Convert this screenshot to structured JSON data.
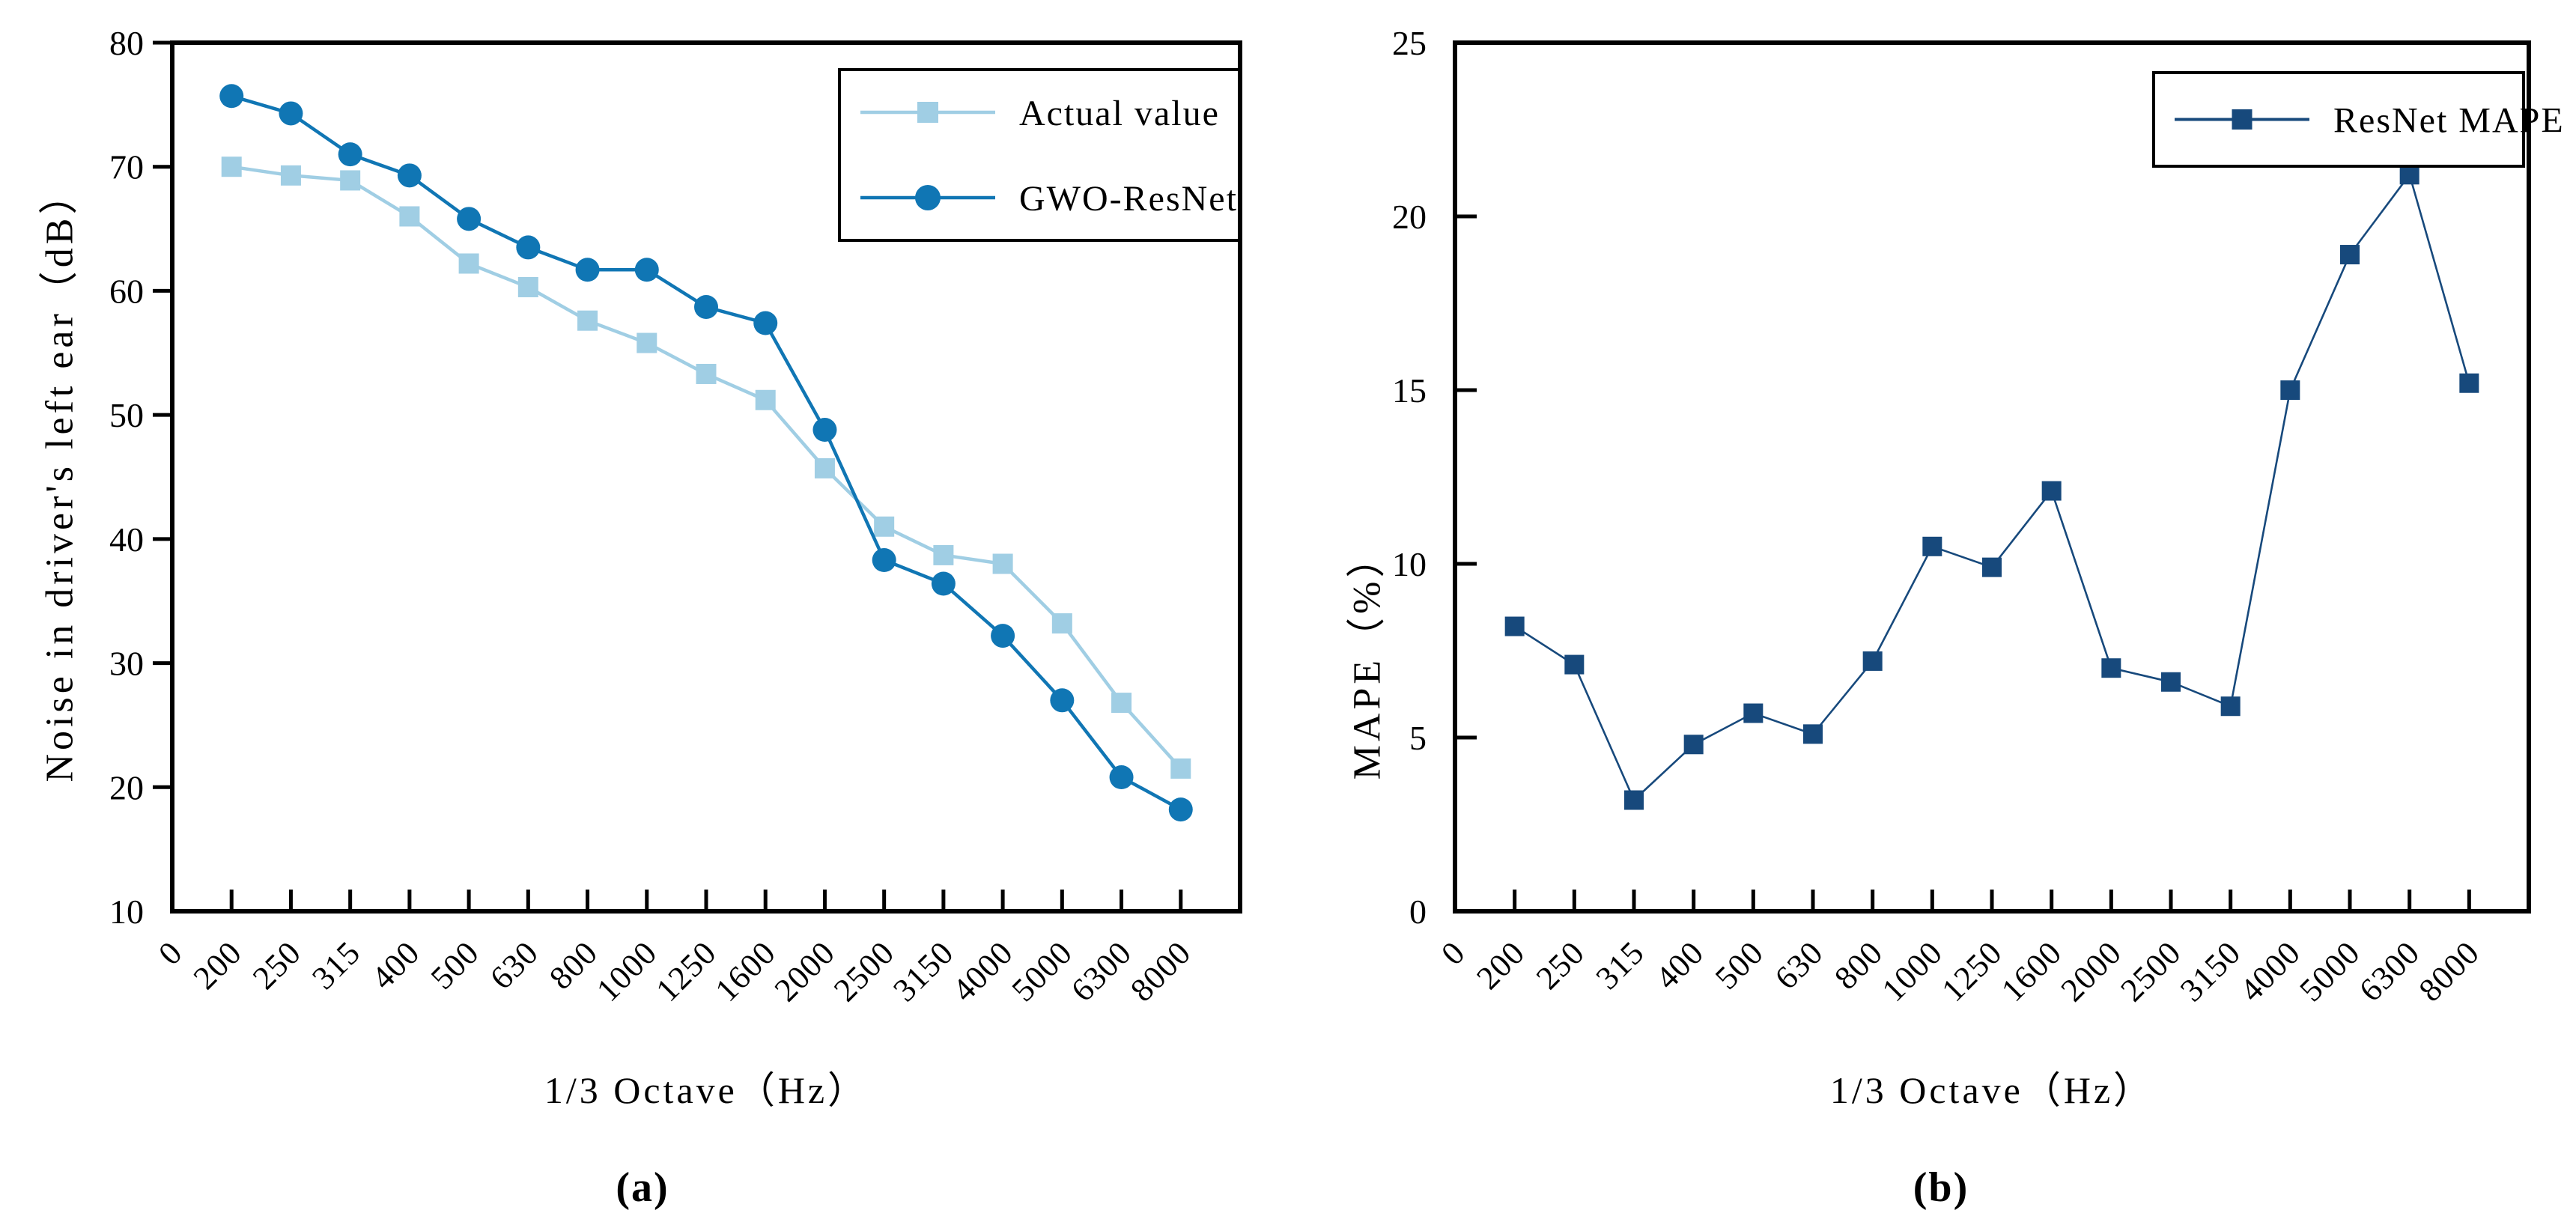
{
  "figure": {
    "background": "#ffffff",
    "axis_color": "#000000"
  },
  "captions": {
    "a": "(a)",
    "b": "(b)"
  },
  "chart_data": [
    {
      "id": "a",
      "type": "line",
      "title": "",
      "xlabel": "1/3 Octave（Hz）",
      "ylabel": "Noise in driver's left ear（dB）",
      "x_tick_labels": [
        "0",
        "200",
        "250",
        "315",
        "400",
        "500",
        "630",
        "800",
        "1000",
        "1250",
        "1600",
        "2000",
        "2500",
        "3150",
        "4000",
        "5000",
        "6300",
        "8000"
      ],
      "categories": [
        "200",
        "250",
        "315",
        "400",
        "500",
        "630",
        "800",
        "1000",
        "1250",
        "1600",
        "2000",
        "2500",
        "3150",
        "4000",
        "5000",
        "6300",
        "8000"
      ],
      "ylim": [
        10,
        80
      ],
      "y_ticks": [
        10,
        20,
        30,
        40,
        50,
        60,
        70,
        80
      ],
      "grid": "off",
      "legend_position": "top-right",
      "series": [
        {
          "name": "Actual value",
          "marker": "square",
          "color": "#a0cee4",
          "values": [
            70.0,
            69.3,
            68.9,
            66.0,
            62.2,
            60.3,
            57.6,
            55.8,
            53.3,
            51.2,
            45.7,
            41.0,
            38.7,
            38.0,
            33.2,
            26.8,
            21.5
          ]
        },
        {
          "name": "GWO-ResNet",
          "marker": "circle",
          "color": "#1076b4",
          "values": [
            75.7,
            74.3,
            71.0,
            69.3,
            65.8,
            63.5,
            61.7,
            61.7,
            58.7,
            57.4,
            48.8,
            38.3,
            36.4,
            32.2,
            27.0,
            20.8,
            18.2
          ]
        }
      ]
    },
    {
      "id": "b",
      "type": "line",
      "title": "",
      "xlabel": "1/3 Octave（Hz）",
      "ylabel": "MAPE（%）",
      "x_tick_labels": [
        "0",
        "200",
        "250",
        "315",
        "400",
        "500",
        "630",
        "800",
        "1000",
        "1250",
        "1600",
        "2000",
        "2500",
        "3150",
        "4000",
        "5000",
        "6300",
        "8000"
      ],
      "categories": [
        "200",
        "250",
        "315",
        "400",
        "500",
        "630",
        "800",
        "1000",
        "1250",
        "1600",
        "2000",
        "2500",
        "3150",
        "4000",
        "5000",
        "6300",
        "8000"
      ],
      "ylim": [
        0,
        25
      ],
      "y_ticks": [
        0,
        5,
        10,
        15,
        20,
        25
      ],
      "grid": "off",
      "legend_position": "top-right",
      "series": [
        {
          "name": "ResNet MAPE",
          "marker": "square",
          "color": "#17497c",
          "values": [
            8.2,
            7.1,
            3.2,
            4.8,
            5.7,
            5.1,
            7.2,
            10.5,
            9.9,
            12.1,
            7.0,
            6.6,
            5.9,
            15.0,
            18.9,
            21.2,
            15.2
          ]
        }
      ]
    }
  ]
}
